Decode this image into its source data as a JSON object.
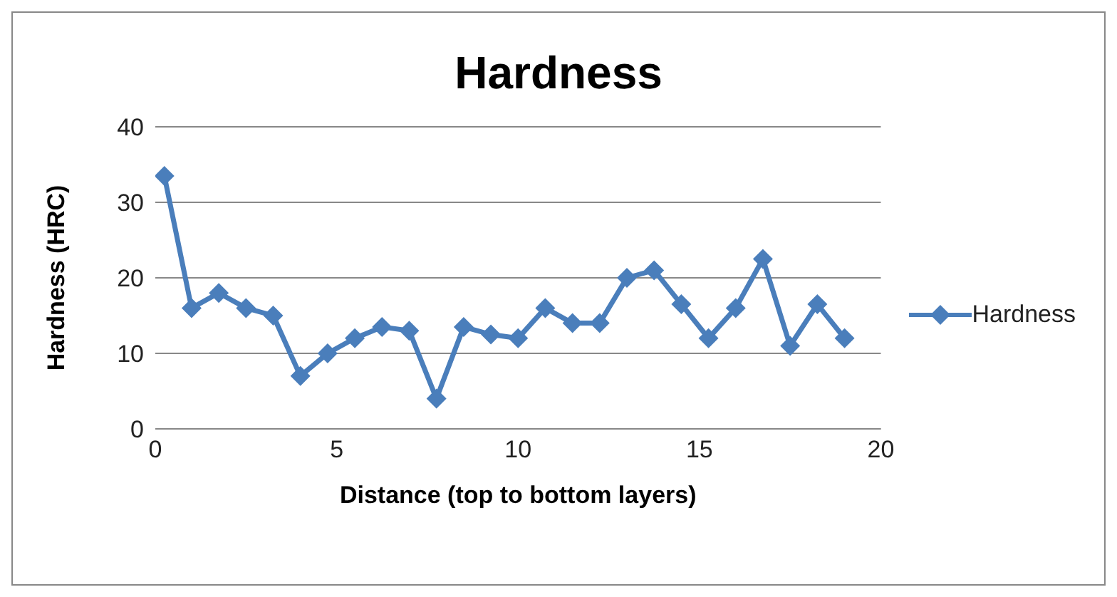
{
  "chart_data": {
    "type": "line",
    "title": "Hardness",
    "xlabel": "Distance (top to bottom layers)",
    "ylabel": "Hardness (HRC)",
    "x": [
      0.25,
      1,
      1.75,
      2.5,
      3.25,
      4,
      4.75,
      5.5,
      6.25,
      7,
      7.75,
      8.5,
      9.25,
      10,
      10.75,
      11.5,
      12.25,
      13,
      13.75,
      14.5,
      15.25,
      16,
      16.75,
      17.5,
      18.25,
      19
    ],
    "series": [
      {
        "name": "Hardness",
        "color": "#4a7ebb",
        "values": [
          33.5,
          16,
          18,
          16,
          15,
          7,
          10,
          12,
          13.5,
          13,
          4,
          13.5,
          12.5,
          12,
          16,
          14,
          14,
          20,
          21,
          16.5,
          12,
          16,
          22.5,
          11,
          16.5,
          12
        ]
      }
    ],
    "xlim": [
      0,
      20
    ],
    "xticks": [
      0,
      5,
      10,
      15,
      20
    ],
    "ylim": [
      0,
      40
    ],
    "yticks": [
      0,
      10,
      20,
      30,
      40
    ],
    "grid": "y",
    "legend": "right",
    "marker": "diamond",
    "line_style": "solid"
  }
}
